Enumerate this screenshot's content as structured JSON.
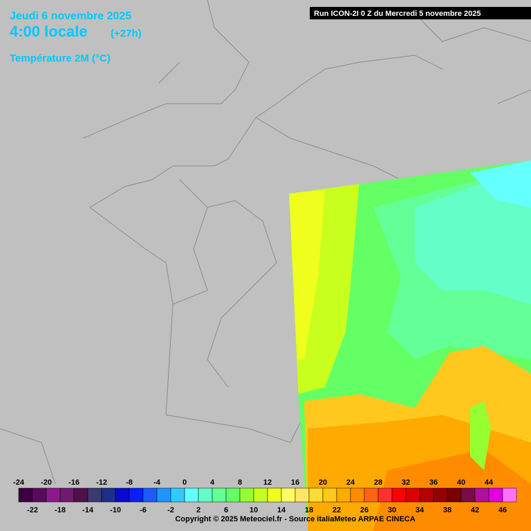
{
  "header": {
    "date": "Jeudi 6 novembre 2025",
    "time": "4:00 locale",
    "lead": "(+27h)",
    "parameter": "Température 2M (°C)",
    "run": "Run ICON-2I 0 Z du Mercredi 5 novembre 2025"
  },
  "legend": {
    "labels": [
      -24,
      -22,
      -20,
      -18,
      -16,
      -14,
      -12,
      -10,
      -8,
      -6,
      -4,
      -2,
      0,
      2,
      4,
      6,
      8,
      10,
      12,
      14,
      16,
      18,
      20,
      22,
      24,
      26,
      28,
      30,
      32,
      34,
      36,
      38,
      40,
      42,
      44,
      46
    ],
    "colors": [
      "#3a0040",
      "#5a0a5a",
      "#8a1a8a",
      "#6e1a6e",
      "#50104a",
      "#3a3a6e",
      "#1e2e8a",
      "#0a0acd",
      "#0a1eff",
      "#1e5aff",
      "#1e96ff",
      "#32c8ff",
      "#64ffff",
      "#64ffc8",
      "#64ff96",
      "#64ff64",
      "#96ff32",
      "#c8ff1e",
      "#f0ff1e",
      "#ffff64",
      "#ffe664",
      "#ffdc32",
      "#ffc81e",
      "#ffaa00",
      "#ff8c00",
      "#ff6414",
      "#ff3232",
      "#ff0000",
      "#dc0000",
      "#b40000",
      "#960000",
      "#780000",
      "#7a0a4a",
      "#b0109a",
      "#e000e0",
      "#ff70ff"
    ]
  },
  "footer": {
    "copyright": "Copyright © 2025 Meteociel.fr - Source italiaMeteo ARPAE CINECA"
  }
}
